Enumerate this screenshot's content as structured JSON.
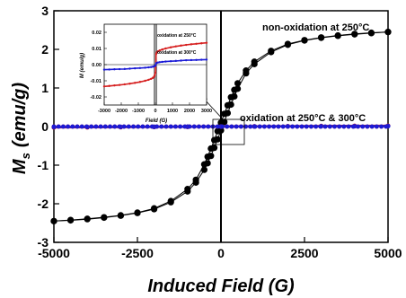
{
  "chart_data": [
    {
      "type": "line",
      "xlabel": "Induced Field (G)",
      "ylabel_main": "M",
      "ylabel_sub": "s",
      "ylabel_unit": "(emu/g)",
      "xlim": [
        -5000,
        5000
      ],
      "ylim": [
        -3,
        3
      ],
      "xticks": [
        -5000,
        -2500,
        0,
        2500,
        5000
      ],
      "xtick_labels": [
        "-5000",
        "-2500",
        "0",
        "2500",
        "5000"
      ],
      "yticks": [
        -3,
        -2,
        -1,
        0,
        1,
        2,
        3
      ],
      "ytick_labels": [
        "-3",
        "-2",
        "-1",
        "0",
        "1",
        "2",
        "3"
      ],
      "grid": false,
      "annotations": [
        {
          "text": "non-oxidation at 250°C",
          "x": 2250,
          "y": 2.72
        },
        {
          "text": "oxidation at 250°C & 300°C",
          "x": 680,
          "y": 0.3
        }
      ],
      "series": [
        {
          "color": "#000000",
          "marker": "circle",
          "x": [
            -5000,
            -4500,
            -4000,
            -3500,
            -3000,
            -2500,
            -2000,
            -1500,
            -1000,
            -750,
            -500,
            -400,
            -300,
            -200,
            -100,
            0,
            100,
            200,
            300,
            400,
            500,
            750,
            1000,
            1500,
            2000,
            2500,
            3000,
            3500,
            4000,
            4500,
            5000
          ],
          "y": [
            -2.45,
            -2.43,
            -2.4,
            -2.36,
            -2.31,
            -2.24,
            -2.14,
            -1.96,
            -1.68,
            -1.45,
            -1.12,
            -0.95,
            -0.76,
            -0.55,
            -0.33,
            -0.1,
            0.12,
            0.35,
            0.57,
            0.78,
            0.98,
            1.38,
            1.62,
            1.93,
            2.12,
            2.23,
            2.3,
            2.35,
            2.39,
            2.42,
            2.45
          ]
        },
        {
          "color": "#000000",
          "marker": "circle",
          "x": [
            5000,
            4500,
            4000,
            3500,
            3000,
            2500,
            2000,
            1500,
            1000,
            750,
            500,
            400,
            300,
            200,
            100,
            0,
            -100,
            -200,
            -300,
            -400,
            -500,
            -750,
            -1000,
            -1500,
            -2000,
            -2500,
            -3000,
            -3500,
            -4000,
            -4500,
            -5000
          ],
          "y": [
            2.45,
            2.43,
            2.4,
            2.36,
            2.31,
            2.24,
            2.14,
            1.96,
            1.68,
            1.45,
            1.12,
            0.95,
            0.76,
            0.55,
            0.33,
            0.1,
            -0.12,
            -0.35,
            -0.57,
            -0.78,
            -0.98,
            -1.38,
            -1.62,
            -1.93,
            -2.12,
            -2.23,
            -2.3,
            -2.35,
            -2.39,
            -2.42,
            -2.45
          ]
        },
        {
          "color": "#d62020",
          "marker": "circle",
          "x": [
            -5000,
            -4000,
            -3000,
            -2000,
            -1000,
            0,
            1000,
            2000,
            3000,
            4000,
            5000
          ],
          "y": [
            -0.022,
            -0.018,
            -0.014,
            -0.01,
            -0.006,
            0.0,
            0.006,
            0.01,
            0.014,
            0.018,
            0.022
          ]
        },
        {
          "color": "#1a1ad6",
          "marker": "circle",
          "x": [
            -5000,
            -4000,
            -3000,
            -2000,
            -1000,
            0,
            1000,
            2000,
            3000,
            4000,
            5000
          ],
          "y": [
            -0.012,
            -0.01,
            -0.008,
            -0.006,
            -0.003,
            0.0,
            0.003,
            0.006,
            0.008,
            0.01,
            0.012
          ]
        }
      ]
    },
    {
      "type": "line",
      "role": "inset",
      "xlabel": "Field (G)",
      "ylabel": "M (emu/g)",
      "xlim": [
        -3000,
        3000
      ],
      "ylim": [
        -0.025,
        0.025
      ],
      "xticks": [
        -3000,
        -2000,
        -1000,
        0,
        1000,
        2000,
        3000
      ],
      "xtick_labels": [
        "-3000",
        "-2000",
        "-1000",
        "0",
        "1000",
        "2000",
        "3000"
      ],
      "yticks": [
        -0.02,
        -0.01,
        0.0,
        0.01,
        0.02
      ],
      "ytick_labels": [
        "-0.02",
        "-0.01",
        "0.00",
        "0.01",
        "0.02"
      ],
      "legend": [
        "oxidation at 250°C",
        "oxidation at 300°C"
      ],
      "series": [
        {
          "name": "oxidation at 250°C",
          "color": "#d62020",
          "x": [
            -3000,
            -2700,
            -2400,
            -2100,
            -1800,
            -1500,
            -1200,
            -900,
            -600,
            -400,
            -250,
            -150,
            -80,
            -40,
            0,
            40,
            80,
            150,
            250,
            400,
            600,
            900,
            1200,
            1500,
            1800,
            2100,
            2400,
            2700,
            3000
          ],
          "y": [
            -0.0135,
            -0.0132,
            -0.0129,
            -0.0126,
            -0.0122,
            -0.0118,
            -0.0113,
            -0.0107,
            -0.01,
            -0.0094,
            -0.0088,
            -0.0082,
            -0.0075,
            -0.0065,
            -0.005,
            0.0065,
            0.0075,
            0.0082,
            0.0088,
            0.0094,
            0.01,
            0.0107,
            0.0113,
            0.0118,
            0.0122,
            0.0126,
            0.0129,
            0.0132,
            0.0135
          ]
        },
        {
          "name": "oxidation at 300°C",
          "color": "#1a1ad6",
          "x": [
            -3000,
            -2700,
            -2400,
            -2100,
            -1800,
            -1500,
            -1200,
            -900,
            -600,
            -400,
            -250,
            -150,
            -80,
            -40,
            0,
            40,
            80,
            150,
            250,
            400,
            600,
            900,
            1200,
            1500,
            1800,
            2100,
            2400,
            2700,
            3000
          ],
          "y": [
            -0.0031,
            -0.003,
            -0.0029,
            -0.0028,
            -0.0027,
            -0.0025,
            -0.0023,
            -0.0021,
            -0.0019,
            -0.0017,
            -0.0015,
            -0.0013,
            -0.0011,
            -0.0008,
            -0.0006,
            0.0008,
            0.0011,
            0.0013,
            0.0015,
            0.0017,
            0.0019,
            0.0021,
            0.0023,
            0.0025,
            0.0027,
            0.0028,
            0.0029,
            0.003,
            0.0031
          ]
        }
      ]
    }
  ]
}
